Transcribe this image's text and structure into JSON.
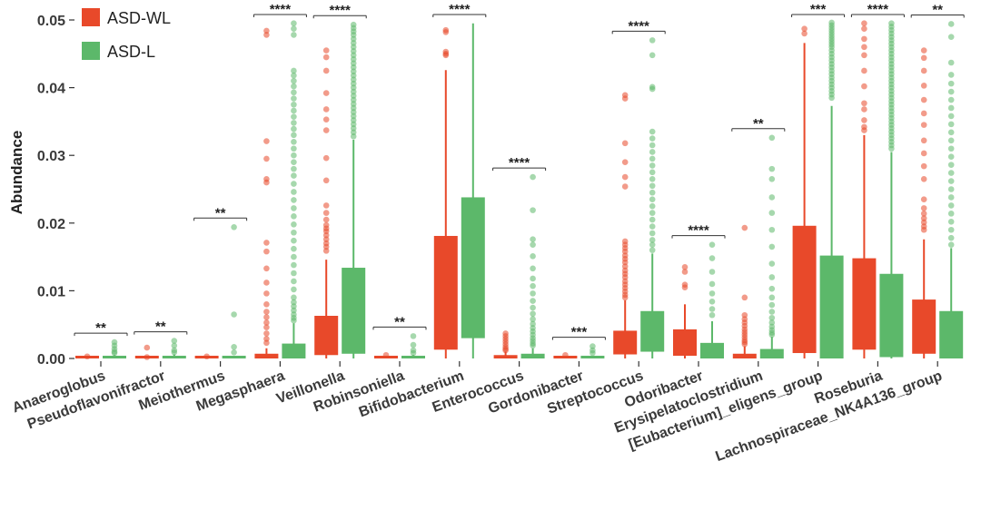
{
  "chart_data": {
    "type": "box",
    "title": "",
    "xlabel": "",
    "ylabel": "Abundance",
    "ylim": [
      0,
      0.05
    ],
    "yticks": [
      "0.00",
      "0.01",
      "0.02",
      "0.03",
      "0.04",
      "0.05"
    ],
    "grid": false,
    "legend_position": "top-left",
    "colors": {
      "ASD-WL": "#e8492a",
      "ASD-L": "#5cb86a"
    },
    "categories": [
      "Anaeroglobus",
      "Pseudoflavonifractor",
      "Meiothermus",
      "Megasphaera",
      "Veillonella",
      "Robinsoniella",
      "Bifidobacterium",
      "Enterococcus",
      "Gordonibacter",
      "Streptococcus",
      "Odoribacter",
      "Erysipelatoclostridium",
      "[Eubacterium]_eligens_group",
      "Roseburia",
      "Lachnospiraceae_NK4A136_group"
    ],
    "significance": [
      "**",
      "**",
      "**",
      "****",
      "****",
      "**",
      "****",
      "****",
      "***",
      "****",
      "****",
      "**",
      "***",
      "****",
      "**"
    ],
    "series": [
      {
        "name": "ASD-WL",
        "boxes": [
          {
            "q1": 0.0,
            "median": 0.0,
            "q3": 0.0002,
            "whislo": 0.0,
            "whishi": 0.0003,
            "outliers": [
              0.0003
            ]
          },
          {
            "q1": 0.0,
            "median": 0.0,
            "q3": 0.0002,
            "whislo": 0.0,
            "whishi": 0.0004,
            "outliers": [
              0.0016,
              0.0002
            ]
          },
          {
            "q1": 0.0,
            "median": 0.0,
            "q3": 0.0001,
            "whislo": 0.0,
            "whishi": 0.0002,
            "outliers": [
              0.0003
            ]
          },
          {
            "q1": 0.0,
            "median": 0.0002,
            "q3": 0.0007,
            "whislo": 0.0,
            "whishi": 0.0015,
            "outliers": [
              0.0484,
              0.0478,
              0.0321,
              0.0295,
              0.0265,
              0.026,
              0.0171,
              0.0158,
              0.0133,
              0.0112,
              0.0096,
              0.008,
              0.0069,
              0.0061,
              0.0053,
              0.0046,
              0.0037,
              0.0029,
              0.0023
            ]
          },
          {
            "q1": 0.0005,
            "median": 0.0012,
            "q3": 0.0063,
            "whislo": 0.0,
            "whishi": 0.0146,
            "outliers": [
              0.0455,
              0.0445,
              0.0425,
              0.0392,
              0.0368,
              0.0353,
              0.0337,
              0.0296,
              0.0263,
              0.0226,
              0.0215,
              0.0205,
              0.0197,
              0.0192,
              0.0188,
              0.0182,
              0.0176,
              0.017,
              0.0165,
              0.0159
            ]
          },
          {
            "q1": 0.0,
            "median": 0.0,
            "q3": 0.0002,
            "whislo": 0.0,
            "whishi": 0.0003,
            "outliers": [
              0.0005
            ]
          },
          {
            "q1": 0.0013,
            "median": 0.0062,
            "q3": 0.0181,
            "whislo": 0.0,
            "whishi": 0.0426,
            "outliers": [
              0.0485,
              0.0482,
              0.0453,
              0.045,
              0.0448
            ]
          },
          {
            "q1": 0.0,
            "median": 0.0001,
            "q3": 0.0005,
            "whislo": 0.0,
            "whishi": 0.001,
            "outliers": [
              0.0037,
              0.0033,
              0.0029,
              0.0025,
              0.0021,
              0.0017,
              0.0014,
              0.0012
            ]
          },
          {
            "q1": 0.0,
            "median": 0.0,
            "q3": 0.0002,
            "whislo": 0.0,
            "whishi": 0.0003,
            "outliers": [
              0.0005
            ]
          },
          {
            "q1": 0.0006,
            "median": 0.0013,
            "q3": 0.0041,
            "whislo": 0.0,
            "whishi": 0.0086,
            "outliers": [
              0.0389,
              0.0384,
              0.0318,
              0.029,
              0.0268,
              0.0254,
              0.0173,
              0.0168,
              0.0163,
              0.0158,
              0.0152,
              0.0147,
              0.0142,
              0.0136,
              0.013,
              0.0125,
              0.012,
              0.0114,
              0.0109,
              0.0104,
              0.0099,
              0.0094,
              0.009
            ]
          },
          {
            "q1": 0.0004,
            "median": 0.0012,
            "q3": 0.0043,
            "whislo": 0.0,
            "whishi": 0.008,
            "outliers": [
              0.0135,
              0.0128,
              0.0109,
              0.0105
            ]
          },
          {
            "q1": 0.0,
            "median": 0.0002,
            "q3": 0.0007,
            "whislo": 0.0,
            "whishi": 0.0018,
            "outliers": [
              0.0193,
              0.009,
              0.0064,
              0.0058,
              0.0053,
              0.0048,
              0.0043,
              0.0039,
              0.0035,
              0.0031,
              0.0027,
              0.0024,
              0.0021
            ]
          },
          {
            "q1": 0.0008,
            "median": 0.0039,
            "q3": 0.0196,
            "whislo": 0.0,
            "whishi": 0.0466,
            "outliers": [
              0.0487,
              0.048
            ]
          },
          {
            "q1": 0.0013,
            "median": 0.0045,
            "q3": 0.0148,
            "whislo": 0.0,
            "whishi": 0.033,
            "outliers": [
              0.0495,
              0.0487,
              0.0472,
              0.046,
              0.0448,
              0.0425,
              0.0402,
              0.0377,
              0.0368,
              0.0352,
              0.0342,
              0.0337
            ]
          },
          {
            "q1": 0.0007,
            "median": 0.0025,
            "q3": 0.0087,
            "whislo": 0.0,
            "whishi": 0.0176,
            "outliers": [
              0.0455,
              0.0444,
              0.0425,
              0.0403,
              0.0382,
              0.0362,
              0.0345,
              0.0322,
              0.0303,
              0.0284,
              0.0265,
              0.0235,
              0.0222,
              0.0214,
              0.0207,
              0.0201,
              0.0195,
              0.019
            ]
          }
        ]
      },
      {
        "name": "ASD-L",
        "boxes": [
          {
            "q1": 0.0,
            "median": 0.0001,
            "q3": 0.0003,
            "whislo": 0.0,
            "whishi": 0.0005,
            "outliers": [
              0.0024,
              0.0019,
              0.0014,
              0.001,
              0.0008
            ]
          },
          {
            "q1": 0.0,
            "median": 0.0001,
            "q3": 0.0003,
            "whislo": 0.0,
            "whishi": 0.0006,
            "outliers": [
              0.0026,
              0.0019,
              0.0012,
              0.0009
            ]
          },
          {
            "q1": 0.0,
            "median": 0.0,
            "q3": 0.0002,
            "whislo": 0.0,
            "whishi": 0.0003,
            "outliers": [
              0.0194,
              0.0065,
              0.0017,
              0.0009
            ]
          },
          {
            "q1": 0.0,
            "median": 0.0005,
            "q3": 0.0022,
            "whislo": 0.0,
            "whishi": 0.0052,
            "outliers": [
              0.0495,
              0.0487,
              0.0478,
              0.0425,
              0.0418,
              0.041,
              0.0402,
              0.0393,
              0.0384,
              0.0375,
              0.0366,
              0.0357,
              0.0348,
              0.0339,
              0.033,
              0.032,
              0.031,
              0.03,
              0.029,
              0.028,
              0.027,
              0.0258,
              0.0246,
              0.0234,
              0.0222,
              0.021,
              0.0198,
              0.0186,
              0.0174,
              0.0162,
              0.015,
              0.0138,
              0.0126,
              0.0114,
              0.0102,
              0.009,
              0.0083,
              0.0077,
              0.0071,
              0.0065,
              0.006,
              0.0056
            ]
          },
          {
            "q1": 0.0007,
            "median": 0.0039,
            "q3": 0.0134,
            "whislo": 0.0,
            "whishi": 0.0323,
            "outliers": [
              0.0493,
              0.0488,
              0.0483,
              0.0478,
              0.0472,
              0.0466,
              0.046,
              0.0454,
              0.0448,
              0.0442,
              0.0436,
              0.043,
              0.0424,
              0.0418,
              0.0412,
              0.0406,
              0.04,
              0.0394,
              0.0388,
              0.0382,
              0.0376,
              0.037,
              0.0364,
              0.0358,
              0.0352,
              0.0346,
              0.034,
              0.0334,
              0.0328
            ]
          },
          {
            "q1": 0.0,
            "median": 0.0,
            "q3": 0.0002,
            "whislo": 0.0,
            "whishi": 0.0005,
            "outliers": [
              0.0033,
              0.002,
              0.0012,
              0.0008
            ]
          },
          {
            "q1": 0.003,
            "median": 0.0092,
            "q3": 0.0238,
            "whislo": 0.0,
            "whishi": 0.0495,
            "outliers": []
          },
          {
            "q1": 0.0,
            "median": 0.0001,
            "q3": 0.0007,
            "whislo": 0.0,
            "whishi": 0.0015,
            "outliers": [
              0.0268,
              0.0219,
              0.0176,
              0.0168,
              0.0151,
              0.0133,
              0.0118,
              0.0107,
              0.0096,
              0.0085,
              0.0075,
              0.0066,
              0.0058,
              0.0051,
              0.0045,
              0.004,
              0.0035,
              0.003,
              0.0026,
              0.0022,
              0.0019
            ]
          },
          {
            "q1": 0.0,
            "median": 0.0,
            "q3": 0.0002,
            "whislo": 0.0,
            "whishi": 0.0004,
            "outliers": [
              0.0018,
              0.0012,
              0.0008
            ]
          },
          {
            "q1": 0.001,
            "median": 0.0028,
            "q3": 0.007,
            "whislo": 0.0,
            "whishi": 0.0155,
            "outliers": [
              0.047,
              0.0448,
              0.0401,
              0.0398,
              0.0335,
              0.0325,
              0.0315,
              0.0305,
              0.0295,
              0.0285,
              0.0275,
              0.0265,
              0.0255,
              0.0245,
              0.0235,
              0.0225,
              0.0215,
              0.0205,
              0.0195,
              0.0185,
              0.0175,
              0.0168,
              0.016
            ]
          },
          {
            "q1": 0.0,
            "median": 0.0007,
            "q3": 0.0023,
            "whislo": 0.0,
            "whishi": 0.0055,
            "outliers": [
              0.0168,
              0.0148,
              0.0128,
              0.011,
              0.0096,
              0.0084,
              0.0073,
              0.0064
            ]
          },
          {
            "q1": 0.0,
            "median": 0.0005,
            "q3": 0.0014,
            "whislo": 0.0,
            "whishi": 0.0032,
            "outliers": [
              0.0326,
              0.028,
              0.0265,
              0.0238,
              0.0215,
              0.019,
              0.0165,
              0.014,
              0.012,
              0.0103,
              0.009,
              0.0079,
              0.0069,
              0.006,
              0.0053,
              0.0047,
              0.0042,
              0.0038,
              0.0035
            ]
          },
          {
            "q1": 0.0,
            "median": 0.0023,
            "q3": 0.0152,
            "whislo": 0.0,
            "whishi": 0.0373,
            "outliers": [
              0.0496,
              0.0492,
              0.0488,
              0.0484,
              0.048,
              0.0476,
              0.0472,
              0.0468,
              0.0464,
              0.046,
              0.0455,
              0.045,
              0.0445,
              0.044,
              0.0435,
              0.043,
              0.0425,
              0.042,
              0.0415,
              0.041,
              0.0405,
              0.04,
              0.0395,
              0.039,
              0.0385
            ]
          },
          {
            "q1": 0.0002,
            "median": 0.0012,
            "q3": 0.0125,
            "whislo": 0.0,
            "whishi": 0.0305,
            "outliers": [
              0.0495,
              0.049,
              0.0485,
              0.048,
              0.0475,
              0.047,
              0.0465,
              0.046,
              0.0455,
              0.045,
              0.0445,
              0.044,
              0.0435,
              0.043,
              0.0425,
              0.042,
              0.0415,
              0.041,
              0.0405,
              0.04,
              0.0395,
              0.039,
              0.0385,
              0.038,
              0.0375,
              0.037,
              0.0365,
              0.036,
              0.0355,
              0.035,
              0.0345,
              0.034,
              0.0335,
              0.033,
              0.0325,
              0.032,
              0.0315,
              0.031
            ]
          },
          {
            "q1": 0.0,
            "median": 0.0015,
            "q3": 0.007,
            "whislo": 0.0,
            "whishi": 0.0163,
            "outliers": [
              0.0494,
              0.0475,
              0.0437,
              0.0419,
              0.0406,
              0.0394,
              0.0382,
              0.037,
              0.0358,
              0.0346,
              0.0334,
              0.0322,
              0.031,
              0.0298,
              0.0286,
              0.0274,
              0.0262,
              0.025,
              0.0238,
              0.0226,
              0.0214,
              0.0202,
              0.019,
              0.0178,
              0.0168
            ]
          }
        ]
      }
    ]
  }
}
